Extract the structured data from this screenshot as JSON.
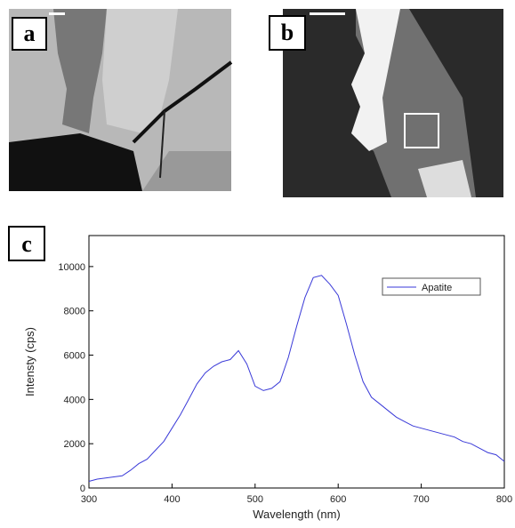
{
  "panel_labels": [
    "a",
    "b",
    "c"
  ],
  "chart_data": {
    "type": "line",
    "x_label": "Wavelength (nm)",
    "y_label": "Intensty (cps)",
    "x": [
      300,
      310,
      320,
      330,
      340,
      350,
      360,
      370,
      380,
      390,
      400,
      410,
      420,
      430,
      440,
      450,
      460,
      470,
      480,
      490,
      500,
      510,
      520,
      530,
      540,
      550,
      560,
      570,
      580,
      590,
      600,
      610,
      620,
      630,
      640,
      650,
      660,
      670,
      680,
      690,
      700,
      710,
      720,
      730,
      740,
      750,
      760,
      770,
      780,
      790,
      800
    ],
    "series": [
      {
        "name": "Apatite",
        "color": "#3a3ad8",
        "values": [
          300,
          400,
          450,
          500,
          550,
          800,
          1100,
          1300,
          1700,
          2100,
          2700,
          3300,
          4000,
          4700,
          5200,
          5500,
          5700,
          5800,
          6200,
          5600,
          4600,
          4400,
          4500,
          4800,
          5900,
          7300,
          8600,
          9500,
          9600,
          9200,
          8700,
          7400,
          6000,
          4800,
          4100,
          3800,
          3500,
          3200,
          3000,
          2800,
          2700,
          2600,
          2500,
          2400,
          2300,
          2100,
          2000,
          1800,
          1600,
          1500,
          1200
        ]
      }
    ],
    "xlim": [
      300,
      800
    ],
    "ylim": [
      0,
      11400
    ],
    "xticks": [
      300,
      400,
      500,
      600,
      700,
      800
    ],
    "yticks": [
      0,
      2000,
      4000,
      6000,
      8000,
      10000
    ],
    "legend": "upper right"
  }
}
